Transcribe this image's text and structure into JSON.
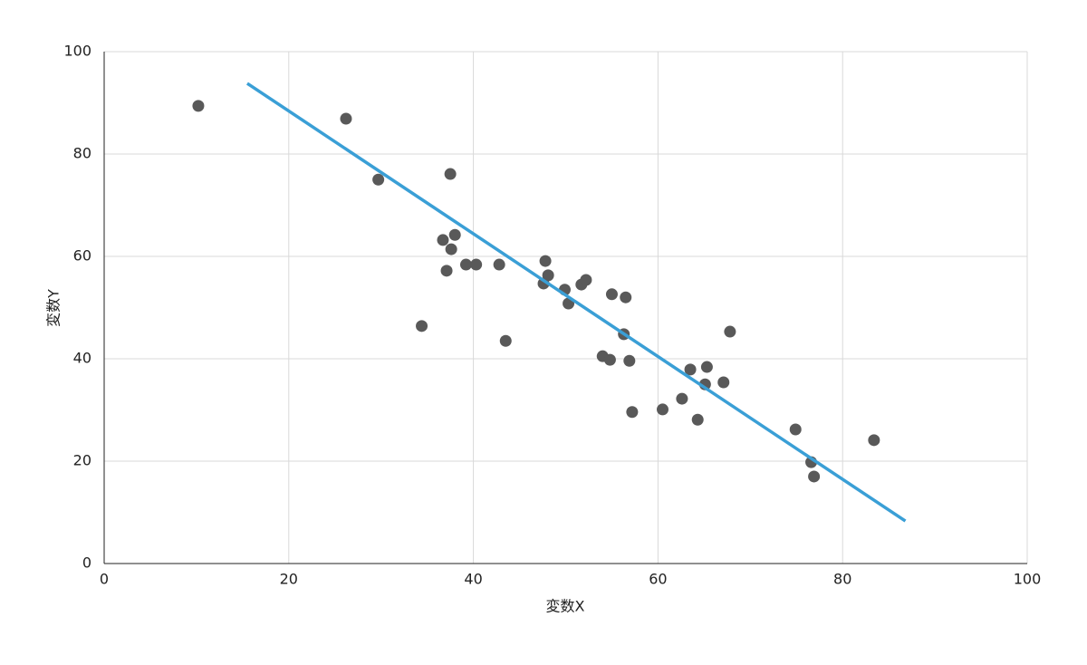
{
  "chart_data": {
    "type": "scatter",
    "x_label": "変数X",
    "y_label": "変数Y",
    "series": [
      {
        "color": "#595959",
        "x": [
          10.2,
          26.2,
          29.7,
          37.5,
          36.7,
          38.0,
          37.6,
          37.1,
          39.2,
          40.3,
          42.8,
          34.4,
          43.5,
          47.8,
          48.1,
          47.6,
          49.9,
          50.3,
          51.7,
          52.2,
          55.0,
          56.5,
          56.3,
          54.0,
          54.8,
          56.9,
          57.2,
          60.5,
          62.6,
          63.5,
          64.3,
          65.3,
          65.1,
          67.1,
          67.8,
          74.9,
          76.6,
          76.9,
          83.4
        ],
        "values": [
          89.4,
          86.9,
          75.0,
          76.1,
          63.2,
          64.2,
          61.4,
          57.2,
          58.4,
          58.4,
          58.4,
          46.4,
          43.5,
          59.1,
          56.3,
          54.7,
          53.5,
          50.8,
          54.5,
          55.4,
          52.6,
          52.0,
          44.8,
          40.5,
          39.8,
          39.6,
          29.6,
          30.1,
          32.2,
          37.9,
          28.1,
          38.4,
          35.0,
          35.4,
          45.3,
          26.2,
          19.8,
          17.0,
          24.1
        ]
      }
    ],
    "trendline": {
      "color": "#3a9fd6",
      "x": [
        15.5,
        86.8
      ],
      "values": [
        93.8,
        8.3
      ]
    },
    "xlim": [
      0,
      100
    ],
    "xticks": [
      0,
      20,
      40,
      60,
      80,
      100
    ],
    "ylim": [
      0,
      100
    ],
    "yticks": [
      0,
      20,
      40,
      60,
      80,
      100
    ],
    "grid": true
  }
}
